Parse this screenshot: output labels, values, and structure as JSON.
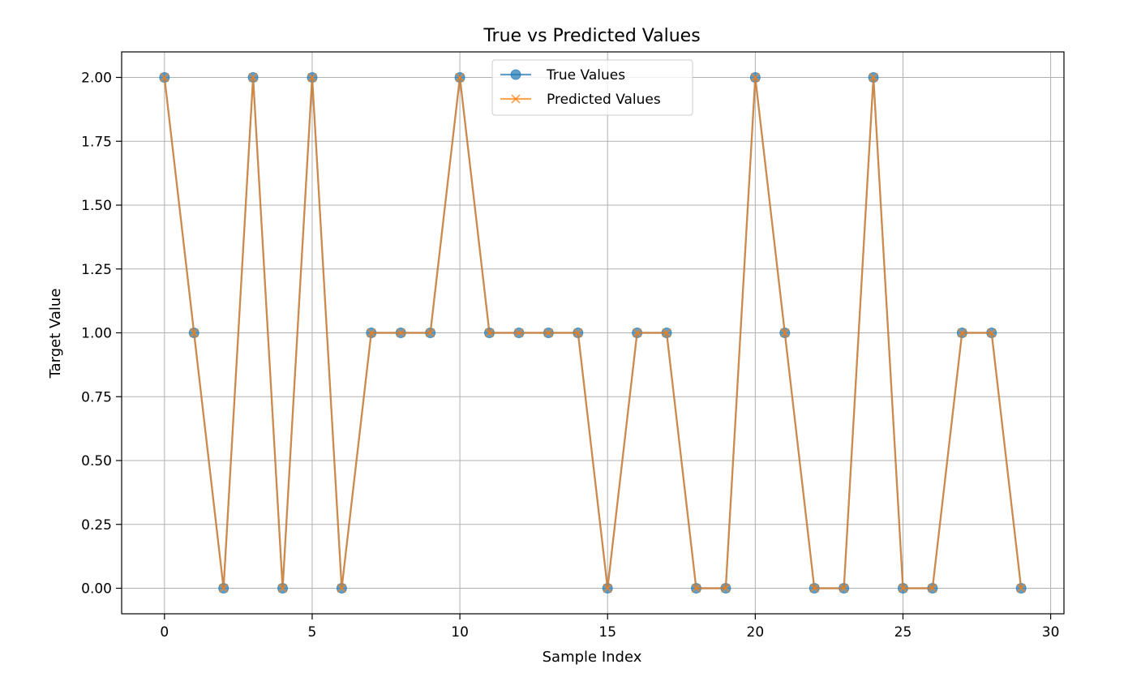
{
  "chart_data": {
    "type": "line",
    "title": "True vs Predicted Values",
    "xlabel": "Sample Index",
    "ylabel": "Target Value",
    "xlim": [
      -1.45,
      30.45
    ],
    "ylim": [
      -0.1,
      2.1
    ],
    "xticks": [
      0,
      5,
      10,
      15,
      20,
      25,
      30
    ],
    "yticks": [
      0.0,
      0.25,
      0.5,
      0.75,
      1.0,
      1.25,
      1.5,
      1.75,
      2.0
    ],
    "xtick_labels": [
      "0",
      "5",
      "10",
      "15",
      "20",
      "25",
      "30"
    ],
    "ytick_labels": [
      "0.00",
      "0.25",
      "0.50",
      "0.75",
      "1.00",
      "1.25",
      "1.50",
      "1.75",
      "2.00"
    ],
    "grid": true,
    "legend_position": "top-center",
    "x": [
      0,
      1,
      2,
      3,
      4,
      5,
      6,
      7,
      8,
      9,
      10,
      11,
      12,
      13,
      14,
      15,
      16,
      17,
      18,
      19,
      20,
      21,
      22,
      23,
      24,
      25,
      26,
      27,
      28,
      29
    ],
    "series": [
      {
        "name": "True Values",
        "marker": "circle",
        "color": "#1f77b4",
        "values": [
          2,
          1,
          0,
          2,
          0,
          2,
          0,
          1,
          1,
          1,
          2,
          1,
          1,
          1,
          1,
          0,
          1,
          1,
          0,
          0,
          2,
          1,
          0,
          0,
          2,
          0,
          0,
          1,
          1,
          0
        ]
      },
      {
        "name": "Predicted Values",
        "marker": "x",
        "color": "#ff7f0e",
        "values": [
          2,
          1,
          0,
          2,
          0,
          2,
          0,
          1,
          1,
          1,
          2,
          1,
          1,
          1,
          1,
          0,
          1,
          1,
          0,
          0,
          2,
          1,
          0,
          0,
          2,
          0,
          0,
          1,
          1,
          0
        ]
      }
    ]
  }
}
